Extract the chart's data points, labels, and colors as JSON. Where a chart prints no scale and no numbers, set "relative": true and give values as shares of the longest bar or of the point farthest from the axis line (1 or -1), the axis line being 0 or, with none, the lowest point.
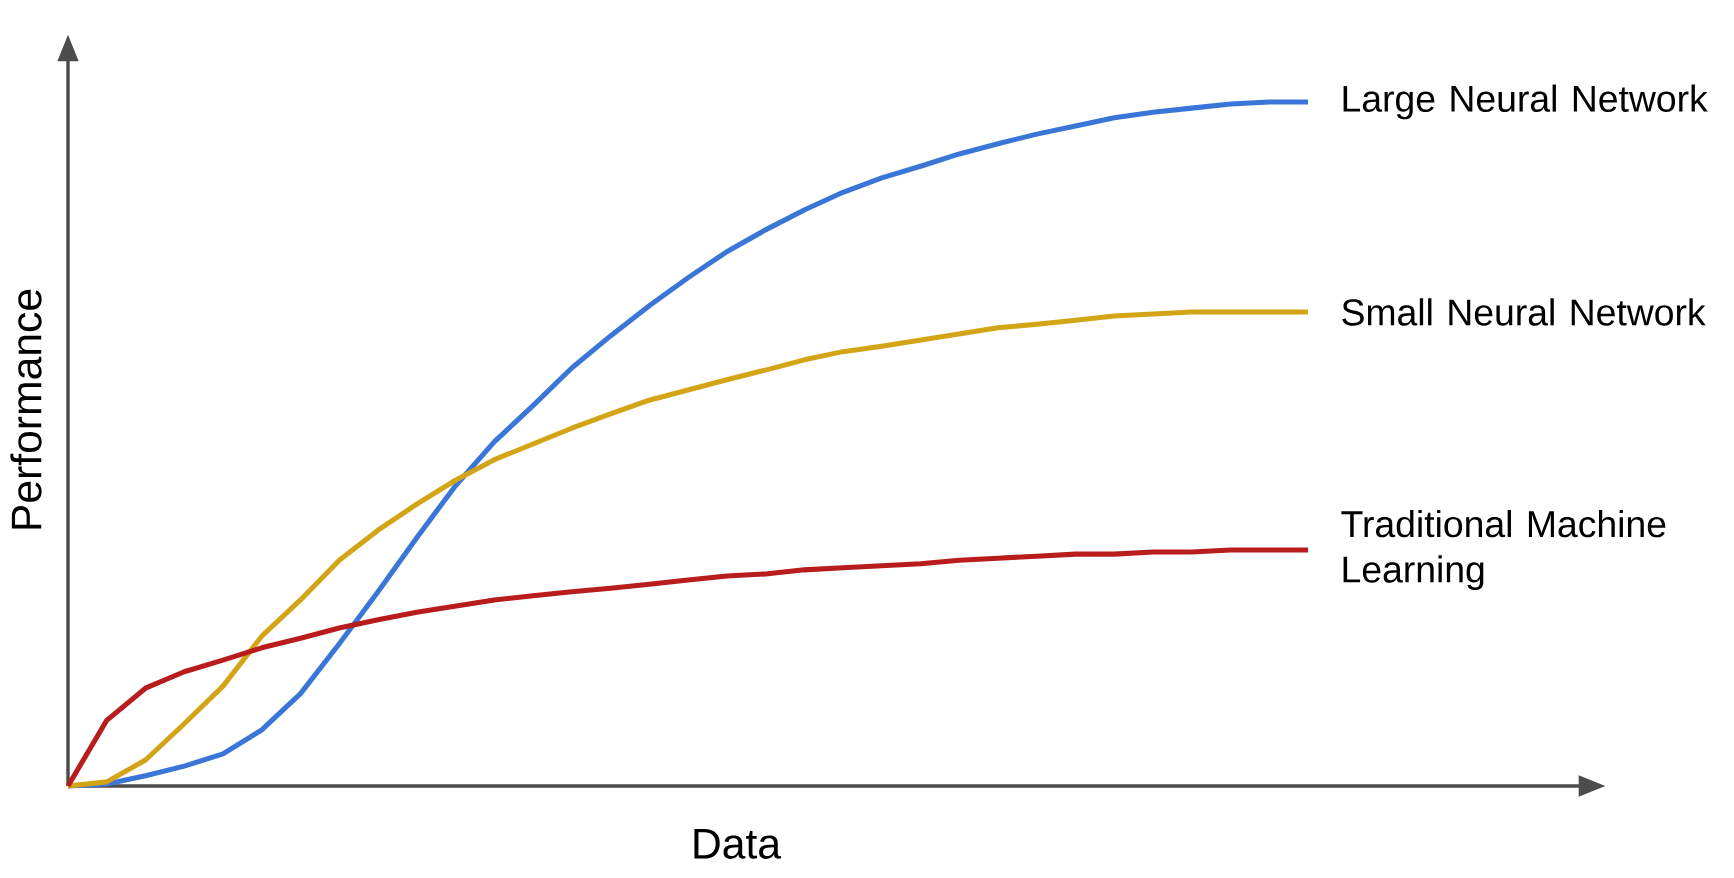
{
  "chart_data": {
    "type": "line",
    "relative": true,
    "xlabel": "Data",
    "ylabel": "Performance",
    "categories": [
      null,
      null,
      null,
      null,
      null,
      null,
      null,
      null,
      null,
      null,
      null,
      null,
      null,
      null,
      null,
      null,
      null,
      null,
      null,
      null,
      null,
      null,
      null,
      null,
      null,
      null,
      null,
      null,
      null,
      null,
      null,
      null,
      null
    ],
    "series": [
      {
        "name": "Large Neural Network",
        "color": "#3a76d8",
        "values": [
          0,
          0.003,
          0.015,
          0.029,
          0.047,
          0.082,
          0.135,
          0.208,
          0.284,
          0.363,
          0.439,
          0.503,
          0.556,
          0.611,
          0.658,
          0.702,
          0.743,
          0.781,
          0.813,
          0.842,
          0.868,
          0.889,
          0.906,
          0.924,
          0.939,
          0.953,
          0.965,
          0.977,
          0.985,
          0.991,
          0.997,
          1.0,
          1.0
        ]
      },
      {
        "name": "Small Neural Network",
        "color": "#d4a417",
        "values": [
          0,
          0.006,
          0.038,
          0.091,
          0.146,
          0.219,
          0.272,
          0.33,
          0.374,
          0.412,
          0.447,
          0.477,
          0.5,
          0.523,
          0.544,
          0.564,
          0.579,
          0.594,
          0.608,
          0.623,
          0.635,
          0.643,
          0.652,
          0.661,
          0.67,
          0.675,
          0.681,
          0.687,
          0.69,
          0.693,
          0.693,
          0.693,
          0.693
        ]
      },
      {
        "name": "Traditional Machine Learning",
        "color": "#b81c1c",
        "values": [
          0,
          0.096,
          0.143,
          0.167,
          0.184,
          0.202,
          0.216,
          0.231,
          0.243,
          0.254,
          0.263,
          0.272,
          0.278,
          0.284,
          0.289,
          0.295,
          0.301,
          0.307,
          0.31,
          0.316,
          0.319,
          0.322,
          0.325,
          0.33,
          0.333,
          0.336,
          0.339,
          0.339,
          0.342,
          0.342,
          0.345,
          0.345,
          0.345
        ]
      }
    ]
  }
}
